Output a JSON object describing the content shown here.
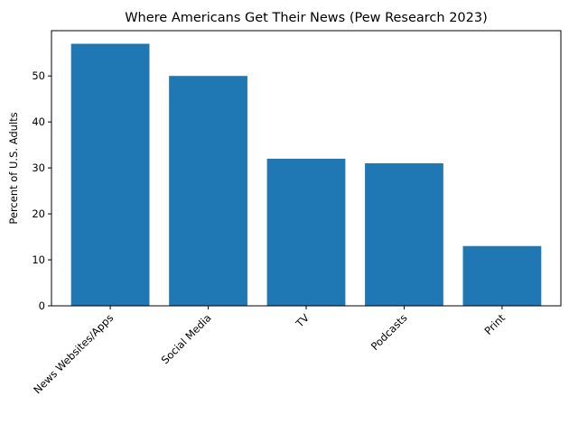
{
  "chart_data": {
    "type": "bar",
    "title": "Where Americans Get Their News (Pew Research 2023)",
    "xlabel": "",
    "ylabel": "Percent of U.S. Adults",
    "categories": [
      "News Websites/Apps",
      "Social Media",
      "TV",
      "Podcasts",
      "Print"
    ],
    "values": [
      57,
      50,
      32,
      31,
      13
    ],
    "ylim": [
      0,
      59.85
    ],
    "yticks": [
      0,
      10,
      20,
      30,
      40,
      50
    ],
    "grid": false,
    "legend": "none",
    "bar_color": "#1f77b4"
  }
}
